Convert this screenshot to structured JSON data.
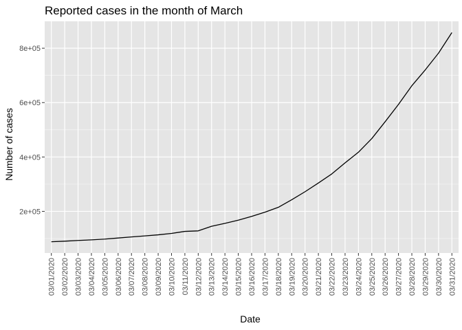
{
  "chart_data": {
    "type": "line",
    "title": "Reported cases in the month of March",
    "xlabel": "Date",
    "ylabel": "Number of cases",
    "categories": [
      "03/01/2020",
      "03/02/2020",
      "03/03/2020",
      "03/04/2020",
      "03/05/2020",
      "03/06/2020",
      "03/07/2020",
      "03/08/2020",
      "03/09/2020",
      "03/10/2020",
      "03/11/2020",
      "03/12/2020",
      "03/13/2020",
      "03/14/2020",
      "03/15/2020",
      "03/16/2020",
      "03/17/2020",
      "03/18/2020",
      "03/19/2020",
      "03/20/2020",
      "03/21/2020",
      "03/22/2020",
      "03/23/2020",
      "03/24/2020",
      "03/25/2020",
      "03/26/2020",
      "03/27/2020",
      "03/28/2020",
      "03/29/2020",
      "03/30/2020",
      "03/31/2020"
    ],
    "values": [
      88300,
      90300,
      93000,
      95200,
      98000,
      102000,
      106000,
      109800,
      113700,
      118900,
      126300,
      128300,
      145200,
      155800,
      167500,
      181600,
      197100,
      214900,
      242700,
      272200,
      304200,
      337500,
      378400,
      417500,
      467700,
      529600,
      593300,
      662000,
      720000,
      782000,
      857500
    ],
    "yticks": [
      200000,
      400000,
      600000,
      800000
    ],
    "ytick_labels": [
      "2e+05",
      "4e+05",
      "6e+05",
      "8e+05"
    ],
    "ylim": [
      46850,
      898950
    ],
    "grid": true,
    "colors": {
      "panel": "#e5e5e5",
      "grid_major": "#ffffff",
      "line": "#000000"
    }
  }
}
